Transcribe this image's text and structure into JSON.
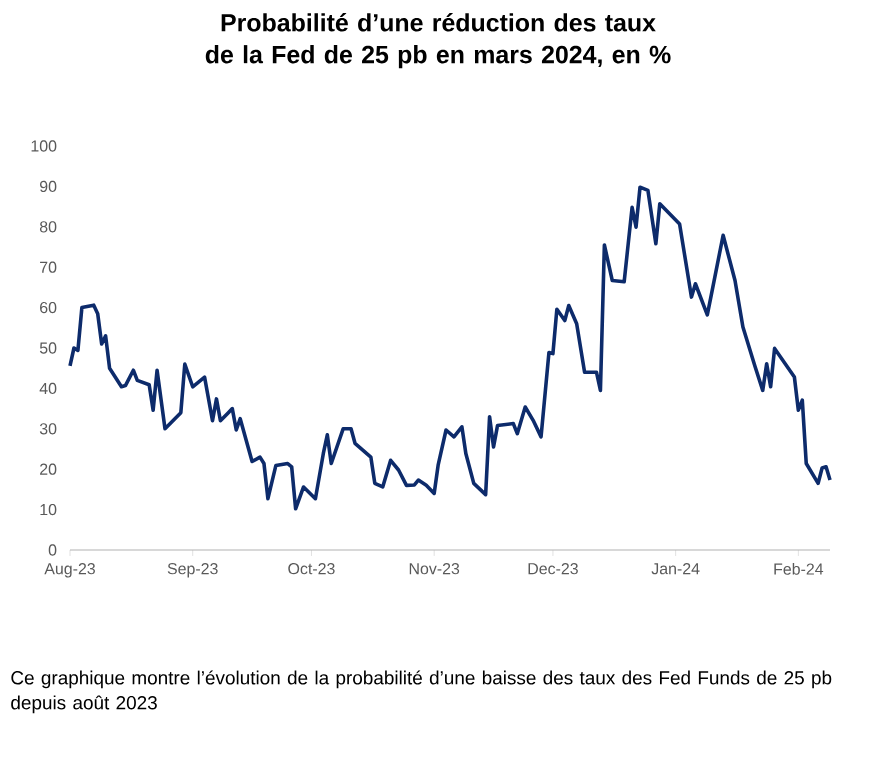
{
  "chart_data": {
    "type": "line",
    "title": "Probabilité d’une réduction des taux de la Fed de 25 pb en mars 2024, en %",
    "annotations": [
      "Ce graphique montre l’évolution de la probabilité d’une baisse des taux des Fed Funds de 25 pb depuis août 2023"
    ],
    "x": [
      "2023-08-01",
      "2023-08-02",
      "2023-08-03",
      "2023-08-04",
      "2023-08-07",
      "2023-08-08",
      "2023-08-09",
      "2023-08-10",
      "2023-08-11",
      "2023-08-14",
      "2023-08-15",
      "2023-08-17",
      "2023-08-18",
      "2023-08-21",
      "2023-08-22",
      "2023-08-23",
      "2023-08-25",
      "2023-08-29",
      "2023-08-30",
      "2023-09-01",
      "2023-09-04",
      "2023-09-06",
      "2023-09-07",
      "2023-09-08",
      "2023-09-10",
      "2023-09-11",
      "2023-09-12",
      "2023-09-13",
      "2023-09-16",
      "2023-09-18",
      "2023-09-19",
      "2023-09-20",
      "2023-09-22",
      "2023-09-25",
      "2023-09-26",
      "2023-09-27",
      "2023-09-29",
      "2023-10-02",
      "2023-10-04",
      "2023-10-05",
      "2023-10-06",
      "2023-10-09",
      "2023-10-11",
      "2023-10-12",
      "2023-10-16",
      "2023-10-17",
      "2023-10-19",
      "2023-10-21",
      "2023-10-23",
      "2023-10-25",
      "2023-10-27",
      "2023-10-28",
      "2023-10-30",
      "2023-11-01",
      "2023-11-02",
      "2023-11-04",
      "2023-11-06",
      "2023-11-08",
      "2023-11-09",
      "2023-11-11",
      "2023-11-14",
      "2023-11-15",
      "2023-11-16",
      "2023-11-17",
      "2023-11-21",
      "2023-11-22",
      "2023-11-24",
      "2023-11-26",
      "2023-11-28",
      "2023-11-30",
      "2023-12-01",
      "2023-12-02",
      "2023-12-04",
      "2023-12-05",
      "2023-12-07",
      "2023-12-09",
      "2023-12-12",
      "2023-12-13",
      "2023-12-14",
      "2023-12-16",
      "2023-12-19",
      "2023-12-21",
      "2023-12-22",
      "2023-12-23",
      "2023-12-25",
      "2023-12-27",
      "2023-12-28",
      "2024-01-02",
      "2024-01-05",
      "2024-01-06",
      "2024-01-09",
      "2024-01-10",
      "2024-01-13",
      "2024-01-16",
      "2024-01-18",
      "2024-01-21",
      "2024-01-23",
      "2024-01-24",
      "2024-01-25",
      "2024-01-26",
      "2024-01-31",
      "2024-02-01",
      "2024-02-02",
      "2024-02-03",
      "2024-02-06",
      "2024-02-07",
      "2024-02-08",
      "2024-02-09"
    ],
    "series": [
      {
        "color": "#0d2b6b",
        "values": [
          45.6,
          50,
          49.4,
          60,
          60.6,
          58.5,
          51,
          53,
          45,
          40.4,
          40.7,
          44.5,
          42,
          40.9,
          34.6,
          44.5,
          30,
          34,
          46,
          40.4,
          42.8,
          32,
          37.4,
          32,
          34,
          35,
          29.7,
          32.5,
          21.9,
          23,
          21.4,
          12.7,
          20.9,
          21.4,
          20.6,
          10.2,
          15.6,
          12.7,
          23.9,
          28.5,
          21.4,
          30,
          30,
          26.4,
          23,
          16.5,
          15.6,
          22.2,
          19.8,
          16,
          16.1,
          17.3,
          16,
          14,
          21,
          29.7,
          28,
          30.5,
          23.9,
          16.5,
          13.7,
          33,
          25.5,
          30.8,
          31.3,
          28.8,
          35.4,
          32.1,
          28,
          48.9,
          48.6,
          59.6,
          56.8,
          60.5,
          56,
          44,
          44,
          39.5,
          75.5,
          66.7,
          66.4,
          84.8,
          79.9,
          89.8,
          89,
          75.8,
          85.7,
          80.7,
          62.6,
          65.9,
          58.2,
          63.1,
          77.9,
          66.7,
          55.2,
          45.6,
          39.5,
          46.1,
          40.4,
          49.9,
          42.8,
          34.6,
          37.1,
          21.4,
          16.5,
          20.3,
          20.6,
          17.3
        ]
      }
    ],
    "xlim": [
      "2023-08-01",
      "2024-02-09"
    ],
    "xticks": [
      {
        "value": "2023-08-01",
        "label": "Aug-23"
      },
      {
        "value": "2023-09-01",
        "label": "Sep-23"
      },
      {
        "value": "2023-10-01",
        "label": "Oct-23"
      },
      {
        "value": "2023-11-01",
        "label": "Nov-23"
      },
      {
        "value": "2023-12-01",
        "label": "Dec-23"
      },
      {
        "value": "2024-01-01",
        "label": "Jan-24"
      },
      {
        "value": "2024-02-01",
        "label": "Feb-24"
      }
    ],
    "ylim": [
      0,
      100
    ],
    "yticks": [
      0,
      10,
      20,
      30,
      40,
      50,
      60,
      70,
      80,
      90,
      100
    ]
  }
}
